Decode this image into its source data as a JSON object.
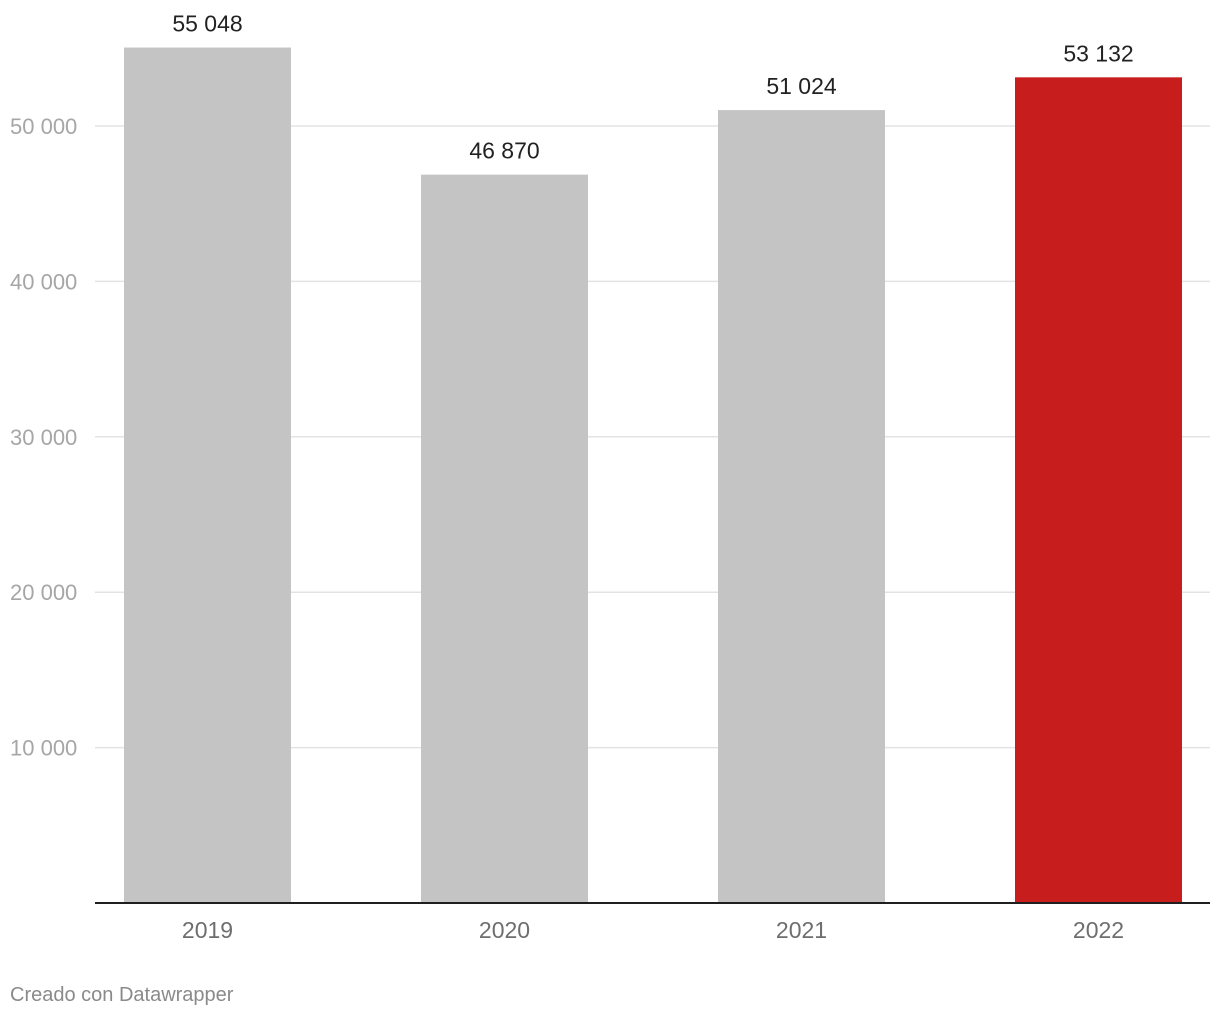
{
  "chart_data": {
    "type": "bar",
    "categories": [
      "2019",
      "2020",
      "2021",
      "2022"
    ],
    "values": [
      55048,
      46870,
      51024,
      53132
    ],
    "value_labels": [
      "55 048",
      "46 870",
      "51 024",
      "53 132"
    ],
    "title": "",
    "xlabel": "",
    "ylabel": "",
    "ylim": [
      0,
      55000
    ],
    "yticks": [
      10000,
      20000,
      30000,
      40000,
      50000
    ],
    "ytick_labels": [
      "10 000",
      "20 000",
      "30 000",
      "40 000",
      "50 000"
    ],
    "grid": true,
    "legend": "none",
    "colors": {
      "default_bar": "#c4c4c4",
      "highlight_bar": "#c81d1d",
      "highlight_category": "2022"
    }
  },
  "footer": {
    "credit": "Creado con Datawrapper"
  }
}
